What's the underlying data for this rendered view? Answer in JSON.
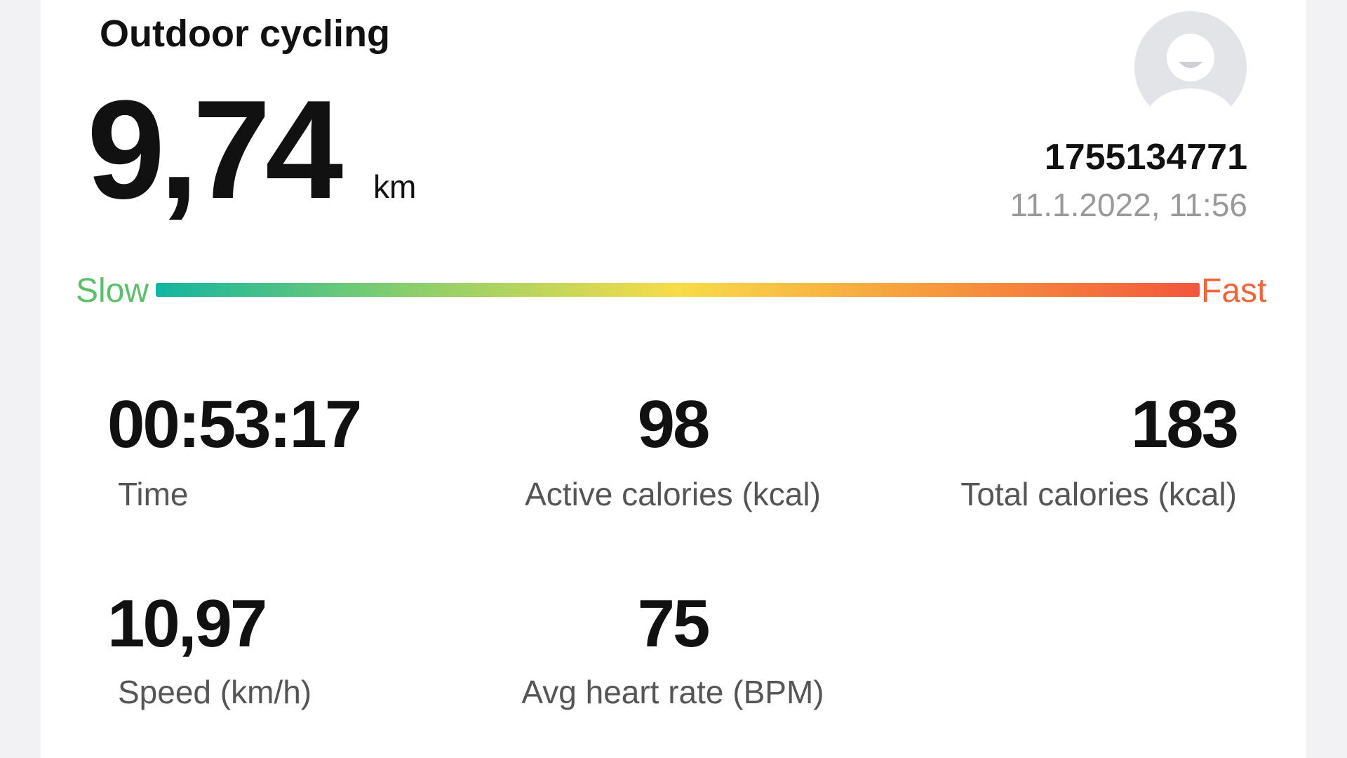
{
  "header": {
    "title": "Outdoor cycling",
    "distance": "9,74",
    "unit": "km",
    "user_id": "1755134771",
    "datetime": "11.1.2022, 11:56"
  },
  "speed_scale": {
    "min_label": "Slow",
    "max_label": "Fast"
  },
  "stats": [
    {
      "value": "00:53:17",
      "label": "Time"
    },
    {
      "value": "98",
      "label": "Active calories (kcal)"
    },
    {
      "value": "183",
      "label": "Total calories (kcal)"
    },
    {
      "value": "10,97",
      "label": "Speed (km/h)"
    },
    {
      "value": "75",
      "label": "Avg heart rate (BPM)"
    }
  ]
}
